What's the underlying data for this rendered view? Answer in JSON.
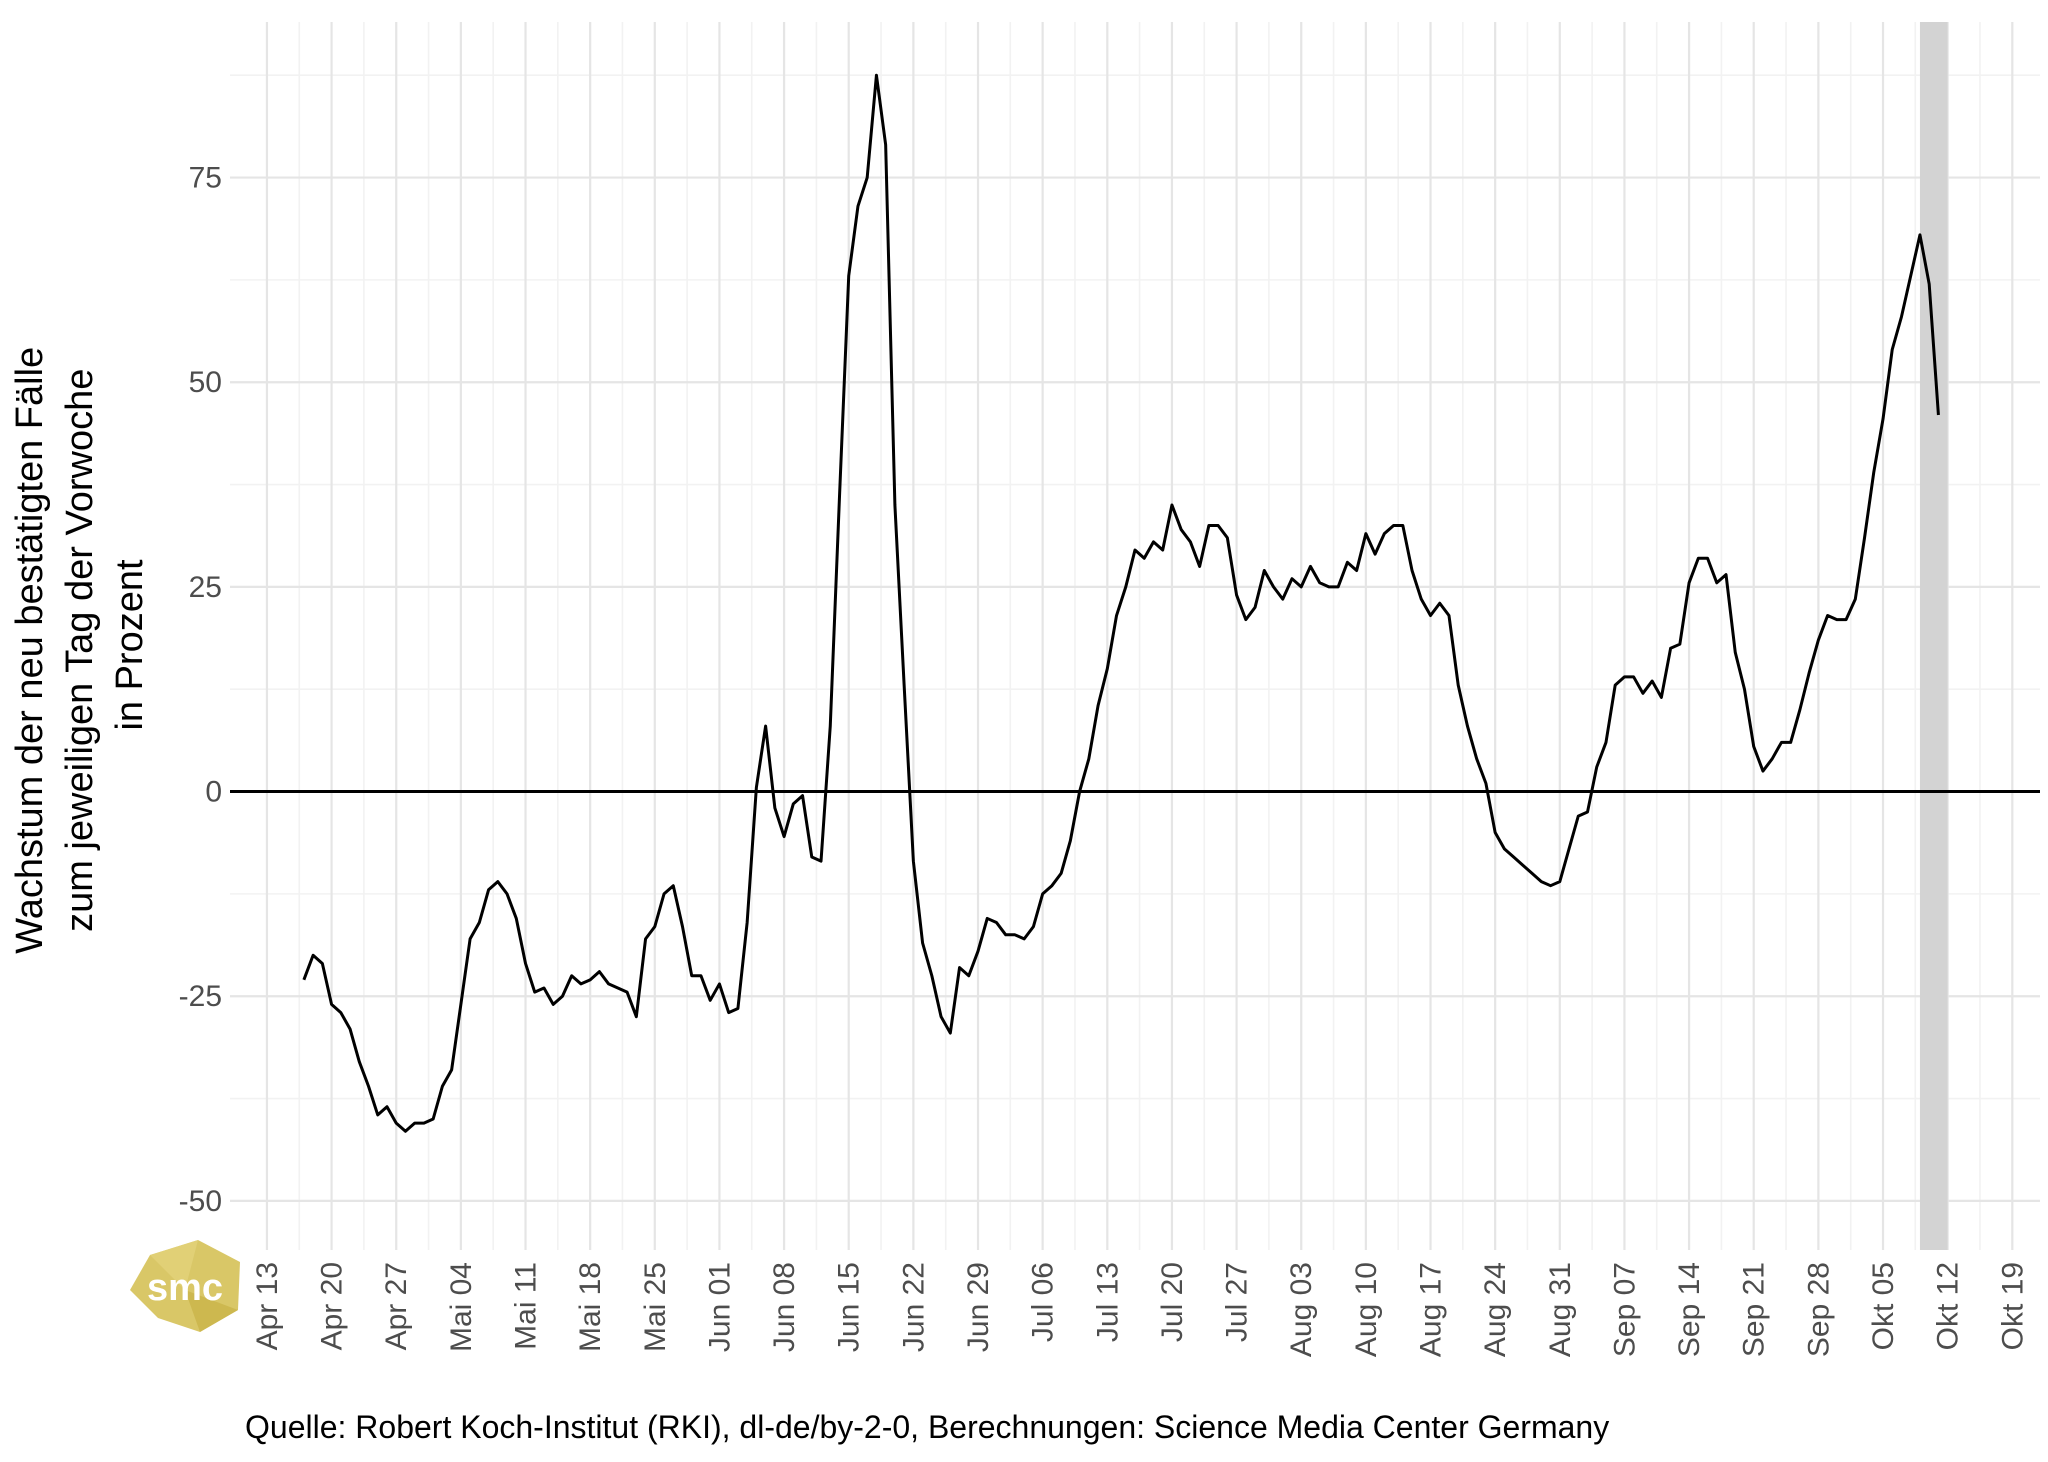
{
  "caption": "Quelle: Robert Koch-Institut (RKI), dl-de/by-2-0, Berechnungen: Science Media Center Germany",
  "logo": {
    "text": "smc",
    "color": "#d6c25a"
  },
  "colors": {
    "line": "#000000",
    "grid_major": "#e5e5e5",
    "grid_minor": "#f2f2f2",
    "highlight": "#d3d3d3",
    "zero_line": "#000000"
  },
  "chart_data": {
    "type": "line",
    "title": "",
    "xlabel": "",
    "ylabel_lines": [
      "Wachstum der neu bestätigten Fälle",
      "zum jeweiligen Tag der Vorwoche",
      "in Prozent"
    ],
    "xlim": [
      "2020-04-09",
      "2020-10-22"
    ],
    "ylim": [
      -56,
      94
    ],
    "y_ticks": [
      -50,
      -25,
      0,
      25,
      50,
      75
    ],
    "x_ticks": [
      {
        "date": "2020-04-13",
        "label": "Apr 13"
      },
      {
        "date": "2020-04-20",
        "label": "Apr 20"
      },
      {
        "date": "2020-04-27",
        "label": "Apr 27"
      },
      {
        "date": "2020-05-04",
        "label": "Mai 04"
      },
      {
        "date": "2020-05-11",
        "label": "Mai 11"
      },
      {
        "date": "2020-05-18",
        "label": "Mai 18"
      },
      {
        "date": "2020-05-25",
        "label": "Mai 25"
      },
      {
        "date": "2020-06-01",
        "label": "Jun 01"
      },
      {
        "date": "2020-06-08",
        "label": "Jun 08"
      },
      {
        "date": "2020-06-15",
        "label": "Jun 15"
      },
      {
        "date": "2020-06-22",
        "label": "Jun 22"
      },
      {
        "date": "2020-06-29",
        "label": "Jun 29"
      },
      {
        "date": "2020-07-06",
        "label": "Jul 06"
      },
      {
        "date": "2020-07-13",
        "label": "Jul 13"
      },
      {
        "date": "2020-07-20",
        "label": "Jul 20"
      },
      {
        "date": "2020-07-27",
        "label": "Jul 27"
      },
      {
        "date": "2020-08-03",
        "label": "Aug 03"
      },
      {
        "date": "2020-08-10",
        "label": "Aug 10"
      },
      {
        "date": "2020-08-17",
        "label": "Aug 17"
      },
      {
        "date": "2020-08-24",
        "label": "Aug 24"
      },
      {
        "date": "2020-08-31",
        "label": "Aug 31"
      },
      {
        "date": "2020-09-07",
        "label": "Sep 07"
      },
      {
        "date": "2020-09-14",
        "label": "Sep 14"
      },
      {
        "date": "2020-09-21",
        "label": "Sep 21"
      },
      {
        "date": "2020-09-28",
        "label": "Sep 28"
      },
      {
        "date": "2020-10-05",
        "label": "Okt 05"
      },
      {
        "date": "2020-10-12",
        "label": "Okt 12"
      },
      {
        "date": "2020-10-19",
        "label": "Okt 19"
      }
    ],
    "reference_line_y": 0,
    "highlight_range": [
      "2020-10-09",
      "2020-10-12"
    ],
    "grid": true,
    "legend": "none",
    "start_date": "2020-04-17",
    "values": [
      -23,
      -20,
      -21,
      -26,
      -27,
      -29,
      -33,
      -36,
      -39.5,
      -38.5,
      -40.5,
      -41.5,
      -40.5,
      -40.5,
      -40,
      -36,
      -34,
      -26,
      -18,
      -16,
      -12,
      -11,
      -12.5,
      -15.5,
      -21,
      -24.5,
      -24,
      -26,
      -25,
      -22.5,
      -23.5,
      -23,
      -22,
      -23.5,
      -24,
      -24.5,
      -27.5,
      -18,
      -16.5,
      -12.5,
      -11.5,
      -16.5,
      -22.5,
      -22.5,
      -25.5,
      -23.5,
      -27,
      -26.5,
      -16,
      0.5,
      8,
      -2,
      -5.5,
      -1.5,
      -0.5,
      -8,
      -8.5,
      8,
      36,
      63,
      71.5,
      75,
      87.5,
      79,
      35,
      13,
      -8.5,
      -18.5,
      -22.5,
      -27.5,
      -29.5,
      -21.5,
      -22.5,
      -19.5,
      -15.5,
      -16,
      -17.5,
      -17.5,
      -18,
      -16.5,
      -12.5,
      -11.5,
      -10,
      -6,
      0,
      4,
      10.5,
      15,
      21.5,
      25,
      29.5,
      28.5,
      30.5,
      29.5,
      35,
      32,
      30.5,
      27.5,
      32.5,
      32.5,
      31,
      24,
      21,
      22.5,
      27,
      25,
      23.5,
      26,
      25,
      27.5,
      25.5,
      25,
      25,
      28,
      27,
      31.5,
      29,
      31.5,
      32.5,
      32.5,
      27,
      23.5,
      21.5,
      23,
      21.5,
      13,
      8,
      4,
      1,
      -5,
      -7,
      -8,
      -9,
      -10,
      -11,
      -11.5,
      -11,
      -7,
      -3,
      -2.5,
      3,
      6,
      13,
      14,
      14,
      12,
      13.5,
      11.5,
      17.5,
      18,
      25.5,
      28.5,
      28.5,
      25.5,
      26.5,
      17,
      12.5,
      5.5,
      2.5,
      4,
      6,
      6,
      10,
      14.5,
      18.5,
      21.5,
      21,
      21,
      23.5,
      31,
      39,
      45.5,
      54,
      58,
      63,
      68,
      62,
      46
    ]
  }
}
